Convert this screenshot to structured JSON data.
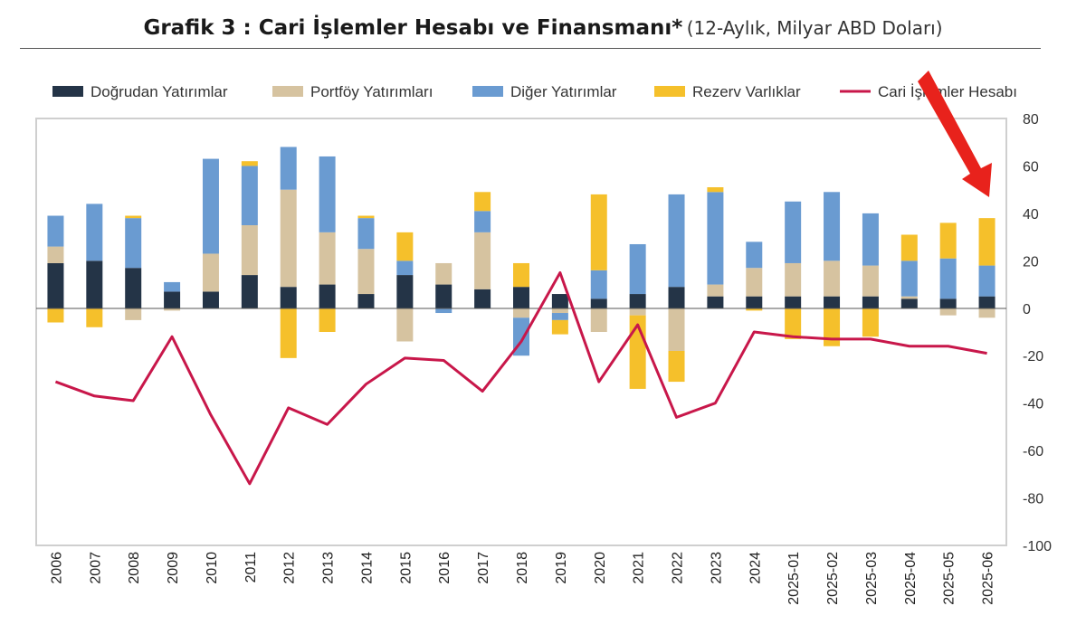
{
  "title": {
    "main": "Grafik 3 : Cari İşlemler Hesabı ve Finansmanı*",
    "subtitle": "(12-Aylık, Milyar ABD Doları)"
  },
  "chart_data": {
    "type": "bar",
    "stacked": true,
    "categories": [
      "2006",
      "2007",
      "2008",
      "2009",
      "2010",
      "2011",
      "2012",
      "2013",
      "2014",
      "2015",
      "2016",
      "2017",
      "2018",
      "2019",
      "2020",
      "2021",
      "2022",
      "2023",
      "2024",
      "2025-01",
      "2025-02",
      "2025-03",
      "2025-04",
      "2025-05",
      "2025-06"
    ],
    "series": [
      {
        "name": "Doğrudan Yatırımlar",
        "kind": "bar",
        "color": "#243447",
        "values": [
          19,
          20,
          17,
          7,
          7,
          14,
          9,
          10,
          6,
          14,
          10,
          8,
          9,
          6,
          4,
          6,
          9,
          5,
          5,
          5,
          5,
          5,
          4,
          4,
          5
        ]
      },
      {
        "name": "Portföy Yatırımları",
        "kind": "bar",
        "color": "#d6c3a0",
        "values": [
          7,
          0,
          -5,
          -1,
          16,
          21,
          41,
          22,
          19,
          -14,
          9,
          24,
          -4,
          -2,
          -10,
          -3,
          -18,
          5,
          12,
          14,
          15,
          13,
          1,
          -3,
          -4
        ]
      },
      {
        "name": "Diğer Yatırımlar",
        "kind": "bar",
        "color": "#6a9bd1",
        "values": [
          13,
          24,
          21,
          4,
          40,
          25,
          18,
          32,
          13,
          6,
          -2,
          9,
          -16,
          -3,
          12,
          21,
          39,
          39,
          11,
          26,
          29,
          22,
          15,
          17,
          13
        ]
      },
      {
        "name": "Rezerv Varlıklar",
        "kind": "bar",
        "color": "#f5c02b",
        "values": [
          -6,
          -8,
          1,
          0,
          0,
          2,
          -21,
          -10,
          1,
          12,
          0,
          8,
          10,
          -6,
          32,
          -31,
          -13,
          2,
          -1,
          -13,
          -16,
          -12,
          11,
          15,
          20
        ]
      },
      {
        "name": "Cari İşlemler Hesabı",
        "kind": "line",
        "color": "#c8174a",
        "values": [
          -31,
          -37,
          -39,
          -12,
          -45,
          -74,
          -42,
          -49,
          -32,
          -21,
          -22,
          -35,
          -14,
          15,
          -31,
          -7,
          -46,
          -40,
          -10,
          -12,
          -13,
          -13,
          -16,
          -16,
          -19
        ]
      }
    ],
    "ylim": [
      -100,
      80
    ],
    "yticks": [
      80,
      60,
      40,
      20,
      0,
      -20,
      -40,
      -60,
      -80,
      -100
    ],
    "legend_position": "top",
    "annotation": "red arrow pointing down to 2025-06 bar"
  }
}
